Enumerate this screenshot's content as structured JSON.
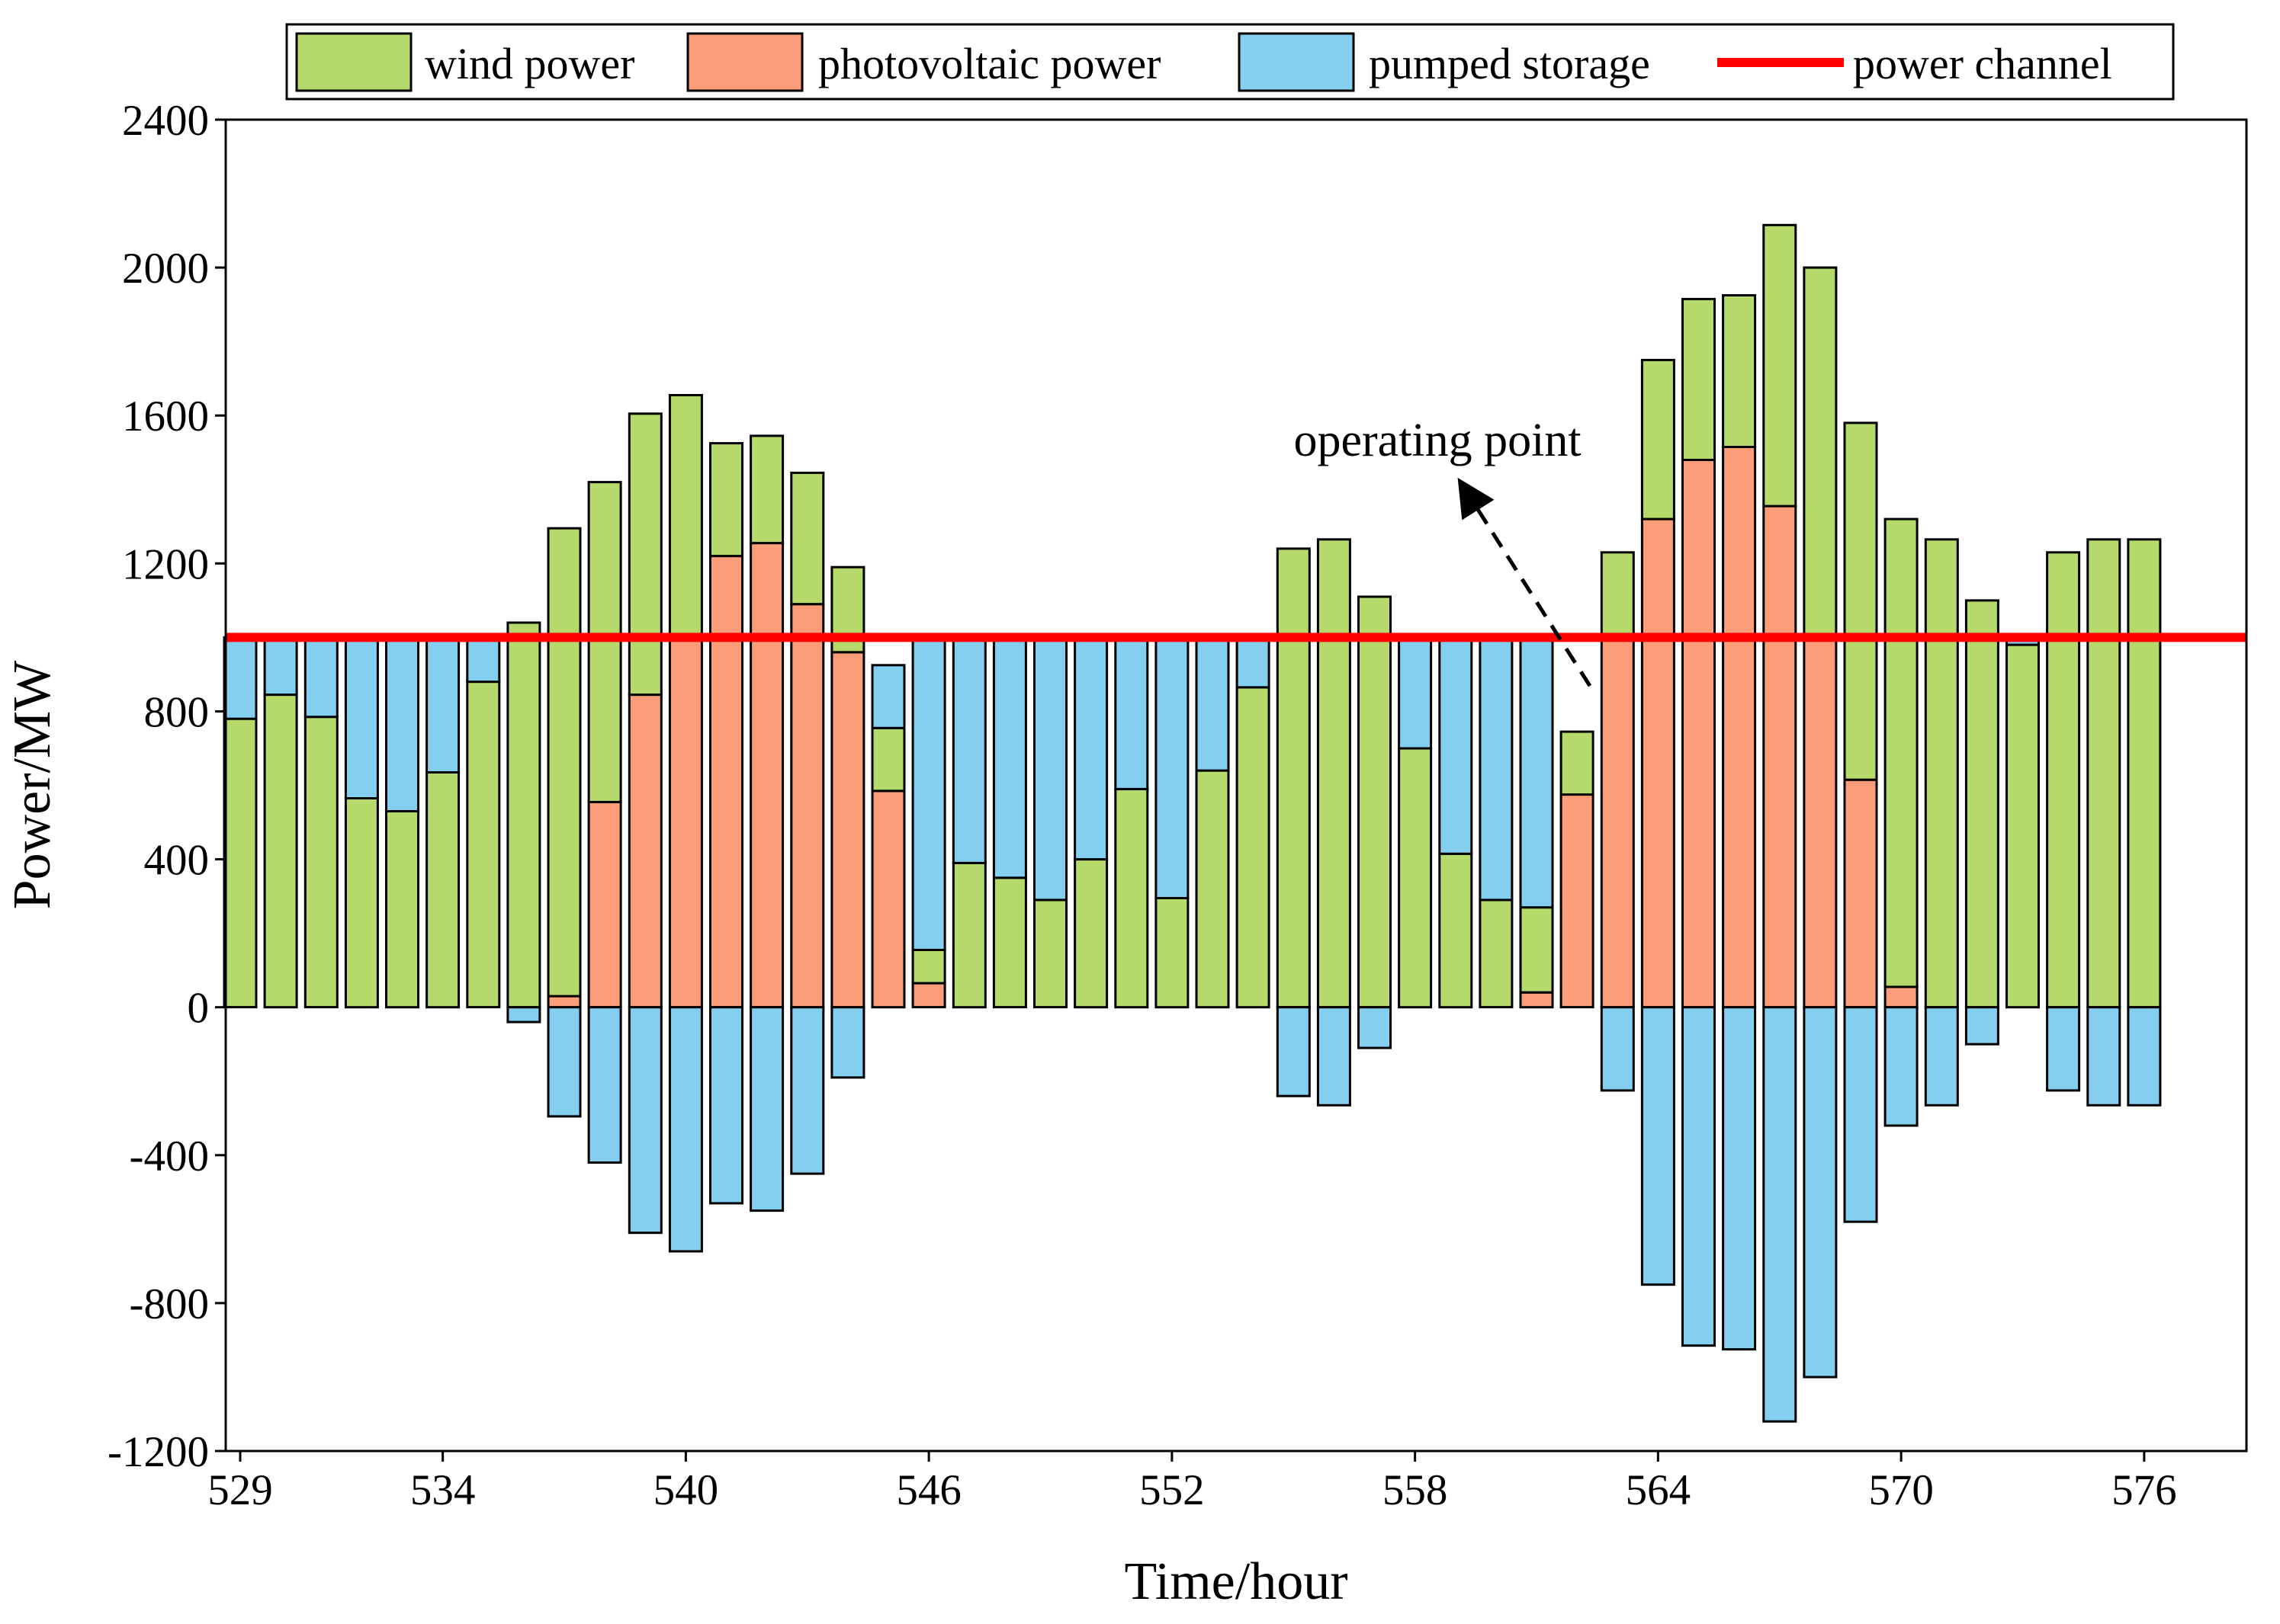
{
  "chart_data": {
    "type": "bar",
    "stacked": true,
    "x": [
      529,
      530,
      531,
      532,
      533,
      534,
      535,
      536,
      537,
      538,
      539,
      540,
      541,
      542,
      543,
      544,
      545,
      546,
      547,
      548,
      549,
      550,
      551,
      552,
      553,
      554,
      555,
      556,
      557,
      558,
      559,
      560,
      561,
      562,
      563,
      564,
      565,
      566,
      567,
      568,
      569,
      570,
      571,
      572,
      573,
      574,
      575,
      576
    ],
    "xticks": [
      529,
      534,
      540,
      546,
      552,
      558,
      564,
      570,
      576
    ],
    "xlabel": "Time/hour",
    "ylabel": "Power/MW",
    "ylim": [
      -1200,
      2400
    ],
    "yticks": [
      -1200,
      -800,
      -400,
      0,
      400,
      800,
      1200,
      1600,
      2000,
      2400
    ],
    "series": [
      {
        "name": "photovoltaic power",
        "color": "#fa9d78",
        "values": [
          0,
          0,
          0,
          0,
          0,
          0,
          0,
          0,
          30,
          555,
          845,
          1000,
          1220,
          1255,
          1090,
          960,
          585,
          65,
          0,
          0,
          0,
          0,
          0,
          0,
          0,
          0,
          0,
          0,
          0,
          0,
          0,
          0,
          40,
          575,
          1000,
          1320,
          1480,
          1515,
          1355,
          1000,
          615,
          55,
          0,
          0,
          0,
          0,
          0,
          0
        ]
      },
      {
        "name": "wind power",
        "color": "#b5da6b",
        "values": [
          780,
          845,
          785,
          565,
          530,
          635,
          880,
          1040,
          1265,
          865,
          760,
          655,
          305,
          290,
          355,
          230,
          170,
          90,
          390,
          350,
          290,
          400,
          590,
          295,
          640,
          865,
          1240,
          1265,
          1110,
          700,
          415,
          290,
          230,
          170,
          230,
          430,
          435,
          410,
          760,
          1000,
          965,
          1265,
          1265,
          1100,
          980,
          1230,
          1265,
          1265
        ]
      },
      {
        "name": "pumped storage",
        "color": "#84cef0",
        "values": [
          220,
          155,
          215,
          435,
          470,
          365,
          120,
          -40,
          -295,
          -420,
          -610,
          -660,
          -530,
          -550,
          -450,
          -190,
          170,
          845,
          610,
          650,
          710,
          600,
          410,
          705,
          360,
          135,
          -240,
          -265,
          -110,
          300,
          585,
          710,
          730,
          0,
          -225,
          -750,
          -915,
          -925,
          -1120,
          -1000,
          -580,
          -320,
          -265,
          -100,
          20,
          -225,
          -265,
          -265
        ]
      }
    ],
    "lines": [
      {
        "name": "power channel",
        "color": "#ff0000",
        "y": 1000
      }
    ],
    "legend": {
      "placement": "top",
      "entries": [
        "wind power",
        "photovoltaic power",
        "pumped storage",
        "power channel"
      ]
    },
    "annotation": {
      "text": "operating point",
      "target_x": 560,
      "target_y": 1000
    }
  }
}
